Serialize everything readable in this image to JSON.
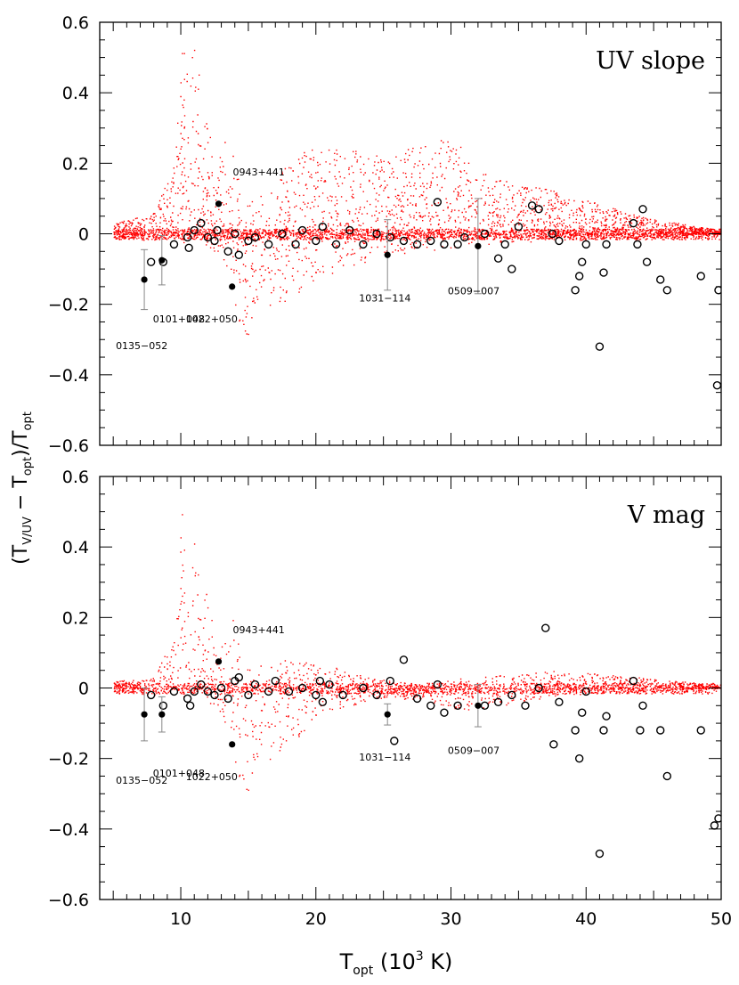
{
  "figure": {
    "ylabel": "(T",
    "ylabel_sub1": "V/UV",
    "ylabel_mid": " − T",
    "ylabel_sub2": "opt",
    "ylabel_end": ")/T",
    "ylabel_sub3": "opt",
    "xlabel": "T",
    "xlabel_sub": "opt",
    "xlabel_unit": " (10",
    "xlabel_sup": "3",
    "xlabel_end": " K)"
  },
  "colors": {
    "model_points": "#ff0000",
    "observed_points": "#000000",
    "frame": "#000000",
    "error_bar": "#888888"
  },
  "chart_data": [
    {
      "type": "scatter",
      "panel_label": "UV slope",
      "xlim": [
        4,
        50
      ],
      "ylim": [
        -0.6,
        0.6
      ],
      "x_ticks": [
        10,
        20,
        30,
        40,
        50
      ],
      "y_ticks": [
        -0.6,
        -0.4,
        -0.2,
        0,
        0.2,
        0.4,
        0.6
      ],
      "y_tick_labels": [
        "−0.6",
        "−0.4",
        "−0.2",
        "0",
        "0.2",
        "0.4",
        "0.6"
      ],
      "x_tick_labels": [],
      "model_envelope": [
        {
          "x": 5,
          "lo": -0.01,
          "hi": 0.03
        },
        {
          "x": 8,
          "lo": -0.02,
          "hi": 0.06
        },
        {
          "x": 9.5,
          "lo": -0.02,
          "hi": 0.2
        },
        {
          "x": 10,
          "lo": -0.03,
          "hi": 0.5
        },
        {
          "x": 10.6,
          "lo": -0.03,
          "hi": 0.6
        },
        {
          "x": 11.5,
          "lo": -0.04,
          "hi": 0.45
        },
        {
          "x": 12.5,
          "lo": -0.05,
          "hi": 0.18
        },
        {
          "x": 13.5,
          "lo": -0.1,
          "hi": 0.3
        },
        {
          "x": 14.5,
          "lo": -0.34,
          "hi": 0.1
        },
        {
          "x": 16,
          "lo": -0.24,
          "hi": 0.13
        },
        {
          "x": 20,
          "lo": -0.13,
          "hi": 0.27
        },
        {
          "x": 25,
          "lo": -0.06,
          "hi": 0.22
        },
        {
          "x": 30,
          "lo": -0.04,
          "hi": 0.28
        },
        {
          "x": 33,
          "lo": -0.03,
          "hi": 0.16
        },
        {
          "x": 38,
          "lo": -0.02,
          "hi": 0.12
        },
        {
          "x": 44,
          "lo": -0.01,
          "hi": 0.05
        },
        {
          "x": 50,
          "lo": 0,
          "hi": 0.01
        }
      ],
      "filled_points": [
        {
          "x": 7.3,
          "y": -0.13,
          "err": 0.085,
          "label": "0135−052"
        },
        {
          "x": 8.6,
          "y": -0.075,
          "err": 0.07,
          "label": "0101+048"
        },
        {
          "x": 12.8,
          "y": 0.085,
          "err": 0,
          "label": "0943+441"
        },
        {
          "x": 13.8,
          "y": -0.15,
          "err": 0,
          "label": "1022+050"
        },
        {
          "x": 25.3,
          "y": -0.06,
          "err": 0.1,
          "label": "1031−114"
        },
        {
          "x": 32,
          "y": -0.035,
          "err": 0.135,
          "label": "0509−007"
        }
      ],
      "open_points": [
        [
          7.8,
          -0.08
        ],
        [
          8.7,
          -0.08
        ],
        [
          9.5,
          -0.03
        ],
        [
          10.5,
          -0.01
        ],
        [
          10.6,
          -0.04
        ],
        [
          11,
          0.01
        ],
        [
          11.5,
          0.03
        ],
        [
          12,
          -0.01
        ],
        [
          12.5,
          -0.02
        ],
        [
          12.7,
          0.01
        ],
        [
          13.5,
          -0.05
        ],
        [
          14,
          0
        ],
        [
          14.3,
          -0.06
        ],
        [
          15,
          -0.02
        ],
        [
          15.5,
          -0.01
        ],
        [
          16.5,
          -0.03
        ],
        [
          17.5,
          0
        ],
        [
          18.5,
          -0.03
        ],
        [
          19,
          0.01
        ],
        [
          20,
          -0.02
        ],
        [
          20.5,
          0.02
        ],
        [
          21.5,
          -0.03
        ],
        [
          22.5,
          0.01
        ],
        [
          23.5,
          -0.03
        ],
        [
          24.5,
          0
        ],
        [
          25.5,
          -0.01
        ],
        [
          26.5,
          -0.02
        ],
        [
          27.5,
          -0.03
        ],
        [
          28.5,
          -0.02
        ],
        [
          29,
          0.09
        ],
        [
          29.5,
          -0.03
        ],
        [
          30.5,
          -0.03
        ],
        [
          31,
          -0.01
        ],
        [
          32.5,
          0
        ],
        [
          33.5,
          -0.07
        ],
        [
          34,
          -0.03
        ],
        [
          34.5,
          -0.1
        ],
        [
          35,
          0.02
        ],
        [
          36,
          0.08
        ],
        [
          36.5,
          0.07
        ],
        [
          37.5,
          0
        ],
        [
          38,
          -0.02
        ],
        [
          39.2,
          -0.16
        ],
        [
          39.5,
          -0.12
        ],
        [
          39.7,
          -0.08
        ],
        [
          40,
          -0.03
        ],
        [
          41,
          -0.32
        ],
        [
          41.3,
          -0.11
        ],
        [
          41.5,
          -0.03
        ],
        [
          43.5,
          0.03
        ],
        [
          43.8,
          -0.03
        ],
        [
          44.2,
          0.07
        ],
        [
          44.5,
          -0.08
        ],
        [
          45.5,
          -0.13
        ],
        [
          46,
          -0.16
        ],
        [
          48.5,
          -0.12
        ],
        [
          49.7,
          -0.43
        ],
        [
          49.8,
          -0.16
        ]
      ]
    },
    {
      "type": "scatter",
      "panel_label": "V mag",
      "xlim": [
        4,
        50
      ],
      "ylim": [
        -0.6,
        0.6
      ],
      "x_ticks": [
        10,
        20,
        30,
        40,
        50
      ],
      "y_ticks": [
        -0.6,
        -0.4,
        -0.2,
        0,
        0.2,
        0.4,
        0.6
      ],
      "y_tick_labels": [
        "−0.6",
        "−0.4",
        "−0.2",
        "0",
        "0.2",
        "0.4",
        "0.6"
      ],
      "x_tick_labels": [
        "10",
        "20",
        "30",
        "40",
        "50"
      ],
      "model_envelope": [
        {
          "x": 5,
          "lo": -0.01,
          "hi": 0.02
        },
        {
          "x": 8,
          "lo": -0.02,
          "hi": 0.03
        },
        {
          "x": 9.5,
          "lo": -0.02,
          "hi": 0.15
        },
        {
          "x": 10,
          "lo": -0.03,
          "hi": 0.5
        },
        {
          "x": 11,
          "lo": -0.03,
          "hi": 0.42
        },
        {
          "x": 12,
          "lo": -0.05,
          "hi": 0.28
        },
        {
          "x": 12.8,
          "lo": -0.06,
          "hi": 0.08
        },
        {
          "x": 13.5,
          "lo": -0.12,
          "hi": 0.27
        },
        {
          "x": 14.5,
          "lo": -0.34,
          "hi": 0.07
        },
        {
          "x": 17,
          "lo": -0.2,
          "hi": 0.08
        },
        {
          "x": 20,
          "lo": -0.09,
          "hi": 0.08
        },
        {
          "x": 24,
          "lo": -0.03,
          "hi": 0.03
        },
        {
          "x": 28,
          "lo": -0.03,
          "hi": 0.01
        },
        {
          "x": 31,
          "lo": -0.07,
          "hi": 0.03
        },
        {
          "x": 35,
          "lo": -0.04,
          "hi": 0.04
        },
        {
          "x": 38,
          "lo": -0.02,
          "hi": 0.05
        },
        {
          "x": 44,
          "lo": -0.01,
          "hi": 0.03
        },
        {
          "x": 50,
          "lo": 0,
          "hi": 0.01
        }
      ],
      "filled_points": [
        {
          "x": 7.3,
          "y": -0.075,
          "err": 0.075,
          "label": "0135−052"
        },
        {
          "x": 8.6,
          "y": -0.075,
          "err": 0.05,
          "label": "0101+048"
        },
        {
          "x": 12.8,
          "y": 0.075,
          "err": 0,
          "label": "0943+441"
        },
        {
          "x": 13.8,
          "y": -0.16,
          "err": 0,
          "label": "1022+050"
        },
        {
          "x": 25.3,
          "y": -0.075,
          "err": 0.03,
          "label": "1031−114"
        },
        {
          "x": 32,
          "y": -0.05,
          "err": 0.06,
          "label": "0509−007"
        }
      ],
      "open_points": [
        [
          7.8,
          -0.02
        ],
        [
          8.7,
          -0.05
        ],
        [
          9.5,
          -0.01
        ],
        [
          10.5,
          -0.03
        ],
        [
          10.7,
          -0.05
        ],
        [
          11,
          -0.01
        ],
        [
          11.5,
          0.01
        ],
        [
          12,
          -0.01
        ],
        [
          12.5,
          -0.02
        ],
        [
          13,
          0
        ],
        [
          13.5,
          -0.03
        ],
        [
          14,
          0.02
        ],
        [
          14.3,
          0.03
        ],
        [
          15,
          -0.02
        ],
        [
          15.5,
          0.01
        ],
        [
          16.5,
          -0.01
        ],
        [
          17,
          0.02
        ],
        [
          18,
          -0.01
        ],
        [
          19,
          0
        ],
        [
          20,
          -0.02
        ],
        [
          20.3,
          0.02
        ],
        [
          20.5,
          -0.04
        ],
        [
          21,
          0.01
        ],
        [
          22,
          -0.02
        ],
        [
          23.5,
          0
        ],
        [
          24.5,
          -0.02
        ],
        [
          25.5,
          0.02
        ],
        [
          25.8,
          -0.15
        ],
        [
          26.5,
          0.08
        ],
        [
          27.5,
          -0.03
        ],
        [
          28.5,
          -0.05
        ],
        [
          29,
          0.01
        ],
        [
          29.5,
          -0.07
        ],
        [
          30.5,
          -0.05
        ],
        [
          32.5,
          -0.05
        ],
        [
          33.5,
          -0.04
        ],
        [
          34.5,
          -0.02
        ],
        [
          35.5,
          -0.05
        ],
        [
          36.5,
          0
        ],
        [
          37,
          0.17
        ],
        [
          37.6,
          -0.16
        ],
        [
          38,
          -0.04
        ],
        [
          39.2,
          -0.12
        ],
        [
          39.5,
          -0.2
        ],
        [
          39.7,
          -0.07
        ],
        [
          40,
          -0.01
        ],
        [
          41,
          -0.47
        ],
        [
          41.3,
          -0.12
        ],
        [
          41.5,
          -0.08
        ],
        [
          43.5,
          0.02
        ],
        [
          44,
          -0.12
        ],
        [
          44.2,
          -0.05
        ],
        [
          45.5,
          -0.12
        ],
        [
          46,
          -0.25
        ],
        [
          48.5,
          -0.12
        ],
        [
          49.5,
          -0.39
        ],
        [
          49.8,
          -0.37
        ]
      ]
    }
  ]
}
